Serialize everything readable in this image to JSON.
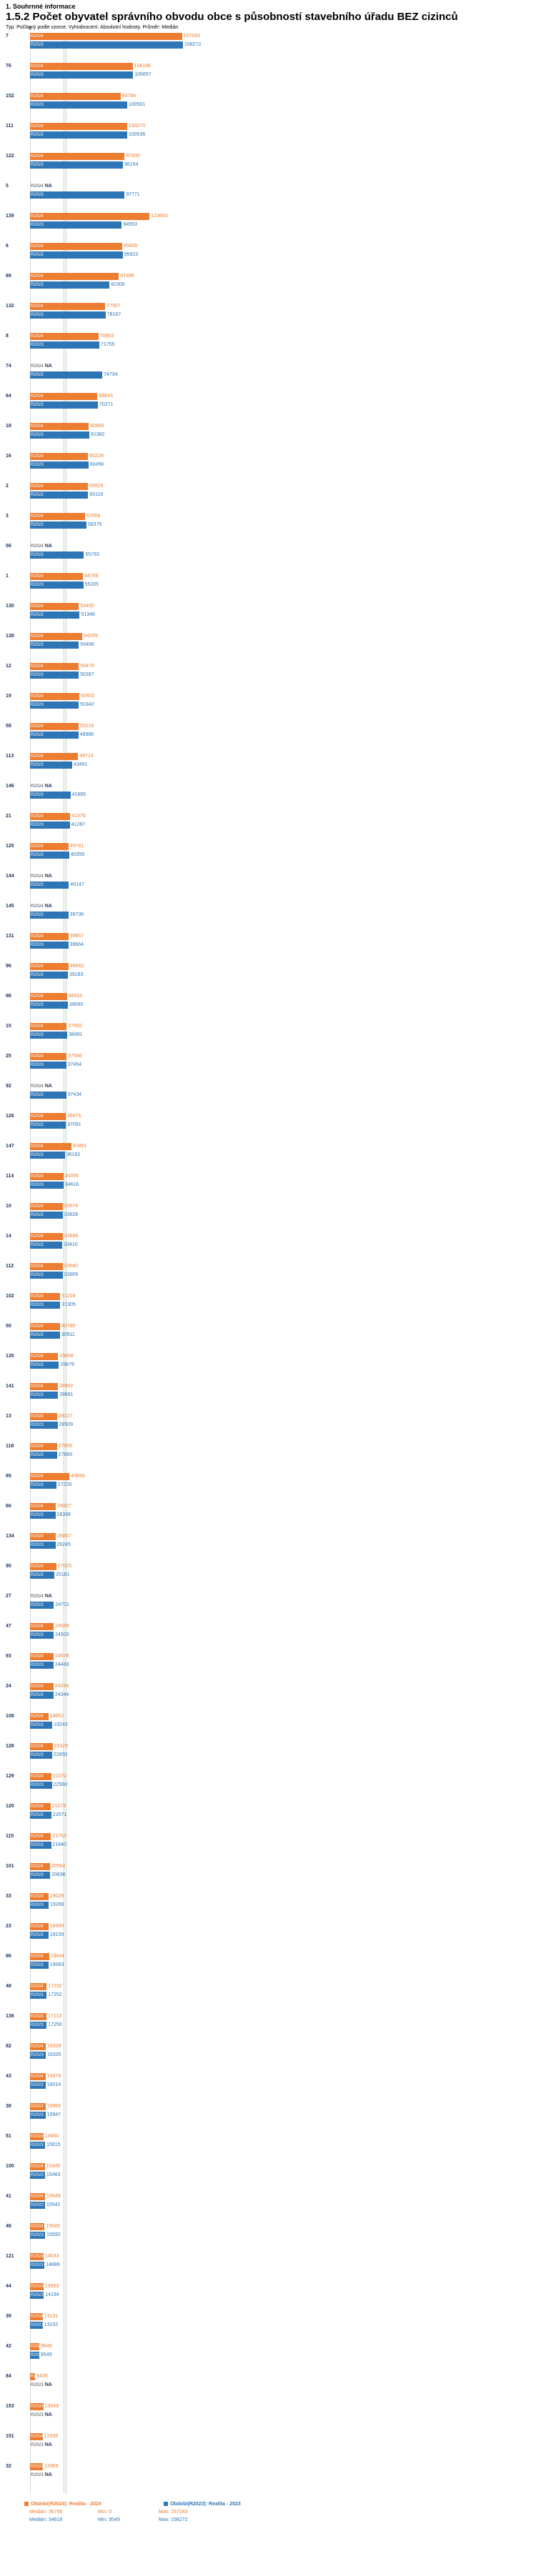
{
  "header": {
    "line1": "1. Souhrnné informace",
    "line2": "1.5.2 Počet obyvatel správního obvodu obce s působností stavebního úřadu BEZ cizinců",
    "line3": "Typ: Počítaný podle vzorce. Vyhodnocení: Absolutní hodnoty. Průměr: Medián"
  },
  "chart_data": {
    "type": "bar",
    "orientation": "horizontal",
    "title": "1.5.2 Počet obyvatel správního obvodu obce s působností stavebního úřadu BEZ cizinců",
    "axis_zero_label": "0",
    "xlim": [
      0,
      158272
    ],
    "max_value": 158272,
    "na_label": "NA",
    "grid": "median-lines-only",
    "median_lines": [
      36766,
      34616
    ],
    "series_names": [
      "R2024",
      "R2023"
    ],
    "colors": {
      "r2024": "#ED7D31",
      "r2023": "#2E75B6"
    },
    "rows": [
      {
        "id": "7",
        "r2024": 157243,
        "r2023": 158272
      },
      {
        "id": "76",
        "r2024": 106198,
        "r2023": 106657
      },
      {
        "id": "152",
        "r2024": 93784,
        "r2023": 100501
      },
      {
        "id": "111",
        "r2024": 100273,
        "r2023": 100536
      },
      {
        "id": "122",
        "r2024": 97935,
        "r2023": 96154
      },
      {
        "id": "5",
        "r2024": null,
        "r2023": 97771
      },
      {
        "id": "139",
        "r2024": 123693,
        "r2023": 94953
      },
      {
        "id": "6",
        "r2024": 95605,
        "r2023": 95923
      },
      {
        "id": "89",
        "r2024": 91995,
        "r2023": 82306
      },
      {
        "id": "132",
        "r2024": 77907,
        "r2023": 78167
      },
      {
        "id": "8",
        "r2024": 70683,
        "r2023": 71755
      },
      {
        "id": "74",
        "r2024": null,
        "r2023": 74734
      },
      {
        "id": "64",
        "r2024": 69843,
        "r2023": 70271
      },
      {
        "id": "18",
        "r2024": 60800,
        "r2023": 61382
      },
      {
        "id": "16",
        "r2024": 60228,
        "r2023": 60456
      },
      {
        "id": "2",
        "r2024": 59929,
        "r2023": 60116
      },
      {
        "id": "3",
        "r2024": 57056,
        "r2023": 58375
      },
      {
        "id": "56",
        "r2024": null,
        "r2023": 55763
      },
      {
        "id": "1",
        "r2024": 54769,
        "r2023": 55205
      },
      {
        "id": "130",
        "r2024": 50492,
        "r2023": 51348
      },
      {
        "id": "138",
        "r2024": 54269,
        "r2023": 50496
      },
      {
        "id": "12",
        "r2024": 50478,
        "r2023": 50397
      },
      {
        "id": "19",
        "r2024": 50932,
        "r2023": 50342
      },
      {
        "id": "58",
        "r2024": 50216,
        "r2023": 49988
      },
      {
        "id": "113",
        "r2024": 49714,
        "r2023": 43491
      },
      {
        "id": "146",
        "r2024": null,
        "r2023": 41865
      },
      {
        "id": "21",
        "r2024": 41576,
        "r2023": 41287
      },
      {
        "id": "125",
        "r2024": 39781,
        "r2023": 40359
      },
      {
        "id": "144",
        "r2024": null,
        "r2023": 40147
      },
      {
        "id": "145",
        "r2024": null,
        "r2023": 39736
      },
      {
        "id": "131",
        "r2024": 39857,
        "r2023": 39664
      },
      {
        "id": "96",
        "r2024": 39663,
        "r2023": 39183
      },
      {
        "id": "98",
        "r2024": 38310,
        "r2023": 39050
      },
      {
        "id": "15",
        "r2024": 37992,
        "r2023": 38491
      },
      {
        "id": "25",
        "r2024": 37946,
        "r2023": 37454
      },
      {
        "id": "92",
        "r2024": null,
        "r2023": 37434
      },
      {
        "id": "126",
        "r2024": 36975,
        "r2023": 37091
      },
      {
        "id": "147",
        "r2024": 42891,
        "r2023": 36181
      },
      {
        "id": "114",
        "r2024": 34395,
        "r2023": 34616
      },
      {
        "id": "10",
        "r2024": 33674,
        "r2023": 33828
      },
      {
        "id": "14",
        "r2024": 33886,
        "r2023": 33410
      },
      {
        "id": "112",
        "r2024": 33640,
        "r2023": 33669
      },
      {
        "id": "102",
        "r2024": 31228,
        "r2023": 31305
      },
      {
        "id": "50",
        "r2024": 30788,
        "r2023": 30911
      },
      {
        "id": "135",
        "r2024": 29008,
        "r2023": 29879
      },
      {
        "id": "141",
        "r2024": 28802,
        "r2023": 28891
      },
      {
        "id": "13",
        "r2024": 28127,
        "r2023": 28509
      },
      {
        "id": "118",
        "r2024": 27905,
        "r2023": 27860
      },
      {
        "id": "85",
        "r2024": 40699,
        "r2023": 27226
      },
      {
        "id": "66",
        "r2024": 26827,
        "r2023": 26336
      },
      {
        "id": "134",
        "r2024": 26857,
        "r2023": 26245
      },
      {
        "id": "90",
        "r2024": 27025,
        "r2023": 25181
      },
      {
        "id": "27",
        "r2024": null,
        "r2023": 24701
      },
      {
        "id": "47",
        "r2024": 24559,
        "r2023": 24503
      },
      {
        "id": "93",
        "r2024": 24578,
        "r2023": 24443
      },
      {
        "id": "24",
        "r2024": 24254,
        "r2023": 24344
      },
      {
        "id": "108",
        "r2024": 18852,
        "r2023": 23242
      },
      {
        "id": "128",
        "r2024": 23329,
        "r2023": 22650
      },
      {
        "id": "129",
        "r2024": 22072,
        "r2023": 22560
      },
      {
        "id": "120",
        "r2024": 21278,
        "r2023": 22071
      },
      {
        "id": "115",
        "r2024": 21753,
        "r2023": 21840
      },
      {
        "id": "101",
        "r2024": 20554,
        "r2023": 20836
      },
      {
        "id": "33",
        "r2024": 19029,
        "r2023": 19266
      },
      {
        "id": "23",
        "r2024": 18990,
        "r2023": 19155
      },
      {
        "id": "86",
        "r2024": 19644,
        "r2023": 19083
      },
      {
        "id": "48",
        "r2024": 17232,
        "r2023": 17252
      },
      {
        "id": "136",
        "r2024": 17113,
        "r2023": 17250
      },
      {
        "id": "82",
        "r2024": 16308,
        "r2023": 16335
      },
      {
        "id": "43",
        "r2024": 15978,
        "r2023": 16014
      },
      {
        "id": "38",
        "r2024": 15866,
        "r2023": 15947
      },
      {
        "id": "51",
        "r2024": 13860,
        "r2023": 15615
      },
      {
        "id": "100",
        "r2024": 15345,
        "r2023": 15483
      },
      {
        "id": "41",
        "r2024": 15549,
        "r2023": 15541
      },
      {
        "id": "46",
        "r2024": 15045,
        "r2023": 15592
      },
      {
        "id": "121",
        "r2024": 14033,
        "r2023": 14889
      },
      {
        "id": "44",
        "r2024": 13953,
        "r2023": 14194
      },
      {
        "id": "39",
        "r2024": 13131,
        "r2023": 13152
      },
      {
        "id": "42",
        "r2024": 9649,
        "r2023": 9549
      },
      {
        "id": "84",
        "r2024": 5435,
        "r2023": null
      },
      {
        "id": "153",
        "r2024": 13649,
        "r2023": null
      },
      {
        "id": "151",
        "r2024": 12938,
        "r2023": null
      },
      {
        "id": "32",
        "r2024": 13369,
        "r2023": null
      }
    ]
  },
  "legend": {
    "r2024": {
      "title": "Období(R2024): Realita - 2024",
      "median": "Medián: 36766",
      "min": "Min: 0",
      "max": "Max: 157243"
    },
    "r2023": {
      "title": "Období(R2023): Realita - 2023",
      "median": "Medián: 34616",
      "min": "Min: 9549",
      "max": "Max: 158272"
    }
  }
}
